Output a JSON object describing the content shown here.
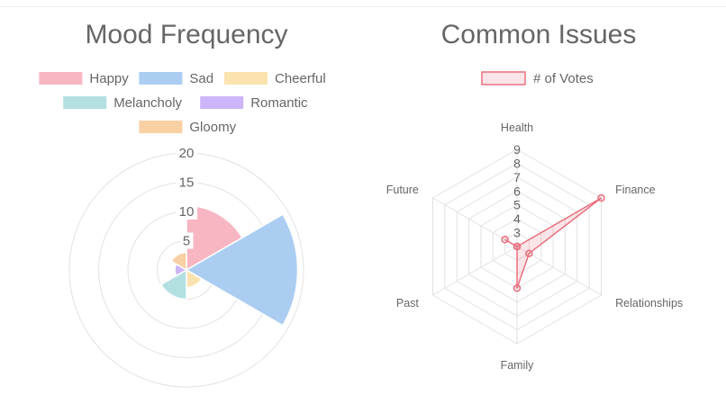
{
  "colors": {
    "text": "#666666",
    "grid": "#e2e2e2",
    "radar_line": "#e8707f",
    "radar_fill": "rgba(232,112,127,0.18)"
  },
  "chart_data": [
    {
      "type": "polarArea",
      "title": "Mood Frequency",
      "categories": [
        "Happy",
        "Sad",
        "Cheerful",
        "Melancholy",
        "Romantic",
        "Gloomy"
      ],
      "values": [
        11,
        19,
        3,
        5,
        2,
        3
      ],
      "colors": [
        "#f7b6c2",
        "#abcdf2",
        "#fbe3b0",
        "#b2e0e0",
        "#cdb6f7",
        "#f9cfa4"
      ],
      "r_ticks": [
        "5",
        "10",
        "15",
        "20"
      ],
      "rlim": [
        0,
        20
      ],
      "legend_position": "top"
    },
    {
      "type": "radar",
      "title": "Common Issues",
      "labels": [
        "Health",
        "Finance",
        "Relationships",
        "Family",
        "Past",
        "Future"
      ],
      "series": [
        {
          "name": "# of Votes",
          "values": [
            2,
            9,
            3,
            5,
            2,
            3
          ]
        }
      ],
      "r_ticks": [
        "2",
        "3",
        "4",
        "5",
        "6",
        "7",
        "8",
        "9"
      ],
      "rlim": [
        2,
        9
      ],
      "legend_position": "top"
    }
  ]
}
